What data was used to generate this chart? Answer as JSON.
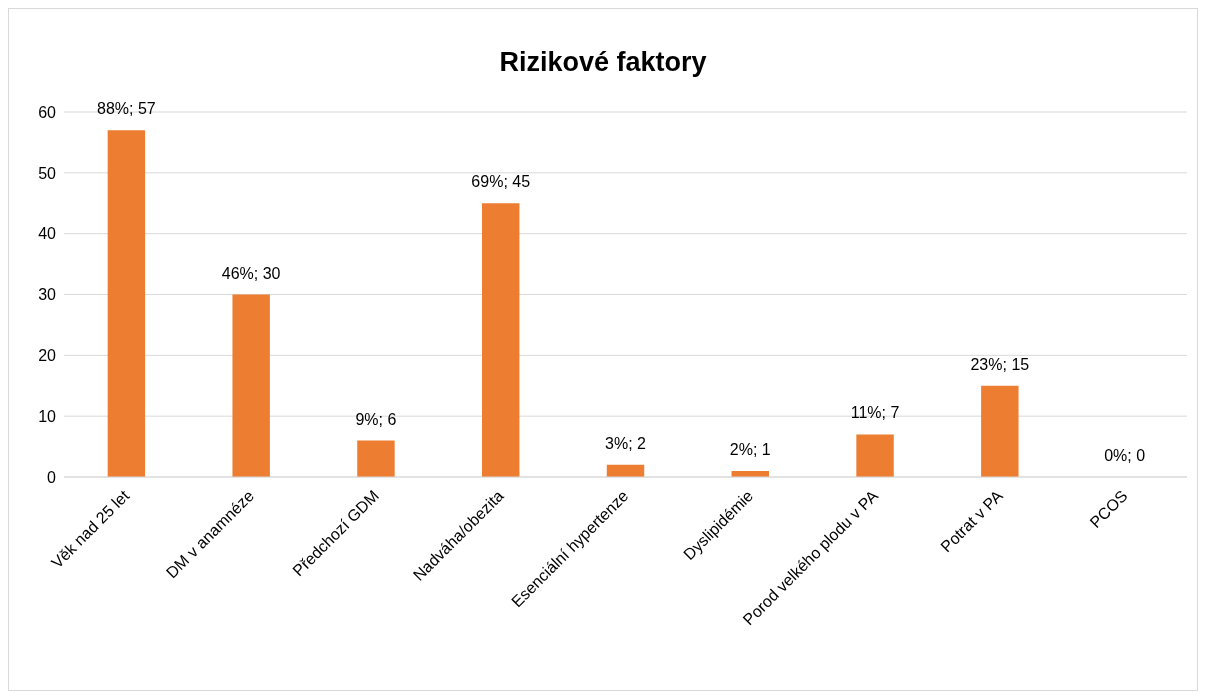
{
  "chart_data": {
    "type": "bar",
    "title": "Rizikové faktory",
    "categories": [
      "Věk nad 25 let",
      "DM v anamnéze",
      "Předchozí GDM",
      "Nadváha/obezita",
      "Esenciální hypertenze",
      "Dyslipidémie",
      "Porod velkého plodu v PA",
      "Potrat v PA",
      "PCOS"
    ],
    "values": [
      57,
      30,
      6,
      45,
      2,
      1,
      7,
      15,
      0
    ],
    "value_labels": [
      "88%; 57",
      "46%; 30",
      "9%; 6",
      "69%; 45",
      "3%; 2",
      "2%; 1",
      "11%; 7",
      "23%; 15",
      "0%; 0"
    ],
    "color": "#ed7d31",
    "ylim": [
      0,
      60
    ],
    "yticks": [
      0,
      10,
      20,
      30,
      40,
      50,
      60
    ],
    "grid": "y",
    "legend": false
  }
}
